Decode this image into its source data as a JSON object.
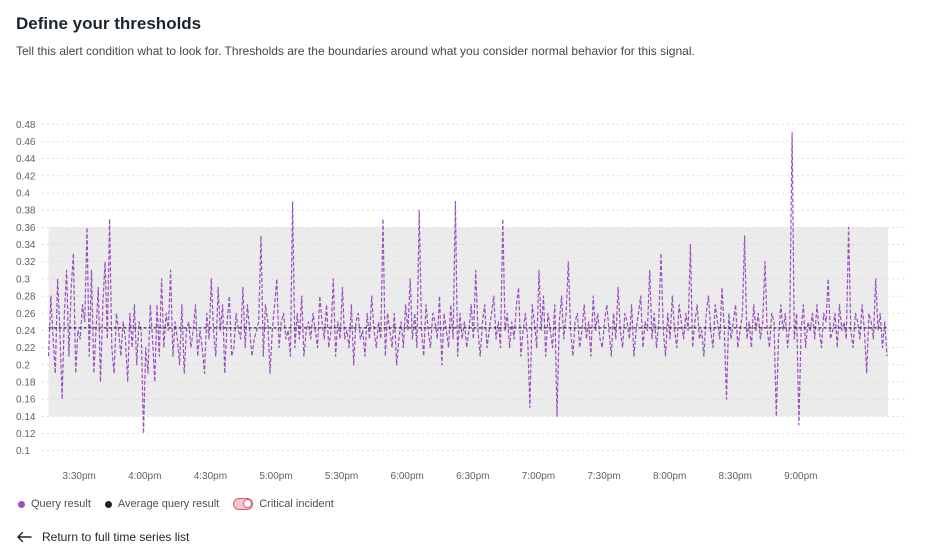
{
  "header": {
    "title": "Define your thresholds",
    "subtitle": "Tell this alert condition what to look for. Thresholds are the boundaries around what you consider normal behavior for this signal."
  },
  "colors": {
    "query": "#9b4fc0",
    "average": "#2b2f33",
    "band": "#ebebeb",
    "grid": "#d5d8da"
  },
  "chart_data": {
    "type": "line",
    "y_ticks": [
      "0.1",
      "0.12",
      "0.14",
      "0.16",
      "0.18",
      "0.2",
      "0.22",
      "0.24",
      "0.26",
      "0.28",
      "0.3",
      "0.32",
      "0.34",
      "0.36",
      "0.38",
      "0.4",
      "0.42",
      "0.44",
      "0.46",
      "0.48"
    ],
    "x_ticks": [
      "3:30pm",
      "4:00pm",
      "4:30pm",
      "5:00pm",
      "5:30pm",
      "6:00pm",
      "6:30pm",
      "7:00pm",
      "7:30pm",
      "8:00pm",
      "8:30pm",
      "9:00pm"
    ],
    "ylim": [
      0.095,
      0.485
    ],
    "x_range_minutes": [
      -17,
      379
    ],
    "band": [
      0.14,
      0.36
    ],
    "average": 0.243,
    "series": [
      {
        "name": "Query result",
        "values": [
          0.21,
          0.28,
          0.23,
          0.19,
          0.3,
          0.24,
          0.16,
          0.26,
          0.31,
          0.21,
          0.29,
          0.33,
          0.19,
          0.24,
          0.23,
          0.27,
          0.25,
          0.36,
          0.21,
          0.31,
          0.19,
          0.24,
          0.29,
          0.18,
          0.27,
          0.32,
          0.23,
          0.37,
          0.22,
          0.19,
          0.26,
          0.24,
          0.21,
          0.25,
          0.23,
          0.18,
          0.26,
          0.22,
          0.27,
          0.2,
          0.25,
          0.24,
          0.12,
          0.22,
          0.19,
          0.27,
          0.23,
          0.18,
          0.27,
          0.21,
          0.3,
          0.22,
          0.26,
          0.24,
          0.31,
          0.21,
          0.25,
          0.23,
          0.2,
          0.27,
          0.19,
          0.24,
          0.25,
          0.22,
          0.24,
          0.27,
          0.21,
          0.24,
          0.22,
          0.19,
          0.26,
          0.23,
          0.3,
          0.24,
          0.21,
          0.29,
          0.24,
          0.27,
          0.19,
          0.25,
          0.28,
          0.21,
          0.22,
          0.26,
          0.24,
          0.23,
          0.29,
          0.22,
          0.27,
          0.24,
          0.21,
          0.23,
          0.24,
          0.25,
          0.35,
          0.21,
          0.27,
          0.25,
          0.19,
          0.24,
          0.27,
          0.3,
          0.22,
          0.25,
          0.26,
          0.23,
          0.24,
          0.21,
          0.39,
          0.22,
          0.26,
          0.23,
          0.28,
          0.21,
          0.24,
          0.25,
          0.23,
          0.26,
          0.24,
          0.22,
          0.28,
          0.25,
          0.23,
          0.27,
          0.22,
          0.24,
          0.3,
          0.21,
          0.25,
          0.23,
          0.29,
          0.23,
          0.24,
          0.22,
          0.27,
          0.2,
          0.25,
          0.26,
          0.23,
          0.24,
          0.21,
          0.26,
          0.23,
          0.28,
          0.24,
          0.22,
          0.25,
          0.23,
          0.37,
          0.21,
          0.26,
          0.24,
          0.22,
          0.26,
          0.2,
          0.23,
          0.25,
          0.22,
          0.27,
          0.24,
          0.3,
          0.23,
          0.26,
          0.22,
          0.38,
          0.24,
          0.21,
          0.27,
          0.24,
          0.22,
          0.26,
          0.25,
          0.23,
          0.28,
          0.2,
          0.26,
          0.24,
          0.22,
          0.27,
          0.23,
          0.39,
          0.21,
          0.26,
          0.23,
          0.25,
          0.22,
          0.24,
          0.27,
          0.23,
          0.31,
          0.24,
          0.21,
          0.25,
          0.27,
          0.22,
          0.24,
          0.26,
          0.28,
          0.23,
          0.25,
          0.22,
          0.37,
          0.24,
          0.26,
          0.22,
          0.25,
          0.23,
          0.27,
          0.29,
          0.21,
          0.24,
          0.26,
          0.23,
          0.15,
          0.27,
          0.25,
          0.22,
          0.31,
          0.24,
          0.28,
          0.21,
          0.26,
          0.24,
          0.22,
          0.27,
          0.14,
          0.25,
          0.28,
          0.23,
          0.26,
          0.32,
          0.24,
          0.21,
          0.25,
          0.26,
          0.22,
          0.24,
          0.27,
          0.23,
          0.25,
          0.21,
          0.28,
          0.24,
          0.26,
          0.23,
          0.22,
          0.25,
          0.27,
          0.24,
          0.21,
          0.26,
          0.23,
          0.29,
          0.24,
          0.22,
          0.26,
          0.25,
          0.23,
          0.27,
          0.21,
          0.24,
          0.26,
          0.28,
          0.22,
          0.25,
          0.24,
          0.31,
          0.23,
          0.26,
          0.22,
          0.25,
          0.33,
          0.24,
          0.21,
          0.26,
          0.23,
          0.28,
          0.24,
          0.22,
          0.27,
          0.25,
          0.23,
          0.26,
          0.24,
          0.34,
          0.22,
          0.25,
          0.27,
          0.23,
          0.24,
          0.21,
          0.26,
          0.28,
          0.24,
          0.22,
          0.27,
          0.25,
          0.23,
          0.29,
          0.24,
          0.16,
          0.26,
          0.23,
          0.25,
          0.27,
          0.22,
          0.24,
          0.26,
          0.35,
          0.23,
          0.25,
          0.22,
          0.27,
          0.24,
          0.26,
          0.23,
          0.25,
          0.32,
          0.24,
          0.22,
          0.26,
          0.25,
          0.14,
          0.23,
          0.27,
          0.24,
          0.26,
          0.22,
          0.25,
          0.47,
          0.23,
          0.26,
          0.13,
          0.24,
          0.27,
          0.22,
          0.25,
          0.24,
          0.26,
          0.23,
          0.27,
          0.24,
          0.22,
          0.26,
          0.25,
          0.3,
          0.23,
          0.24,
          0.26,
          0.22,
          0.27,
          0.24,
          0.25,
          0.23,
          0.36,
          0.24,
          0.22,
          0.26,
          0.25,
          0.23,
          0.27,
          0.24,
          0.19,
          0.26,
          0.25,
          0.23,
          0.3,
          0.24,
          0.26,
          0.22,
          0.25,
          0.21
        ]
      },
      {
        "name": "Average query result"
      }
    ]
  },
  "legend": {
    "query": "Query result",
    "average": "Average query result",
    "critical": "Critical incident"
  },
  "footer": {
    "return_label": "Return to full time series list"
  }
}
